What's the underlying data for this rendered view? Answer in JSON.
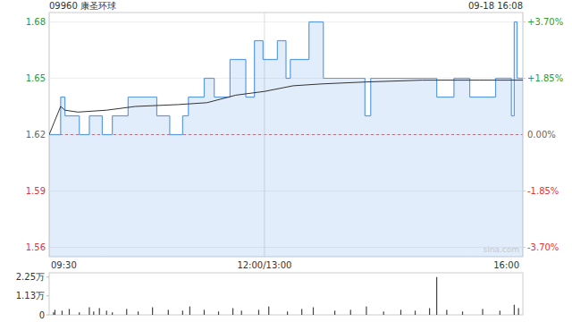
{
  "chart_data": [
    {
      "type": "line",
      "title": "09960 康圣环球",
      "subtitle": "09-18 16:08",
      "annotations": [
        "sina.com"
      ],
      "series": [
        {
          "type": "area",
          "line_style": "step",
          "color": "#5b9be6",
          "x": [
            0,
            8,
            11,
            21,
            28,
            37,
            44,
            55,
            75,
            84,
            93,
            97,
            108,
            115,
            126,
            137,
            143,
            149,
            159,
            165,
            168,
            181,
            191,
            220,
            224,
            270,
            282,
            293,
            311,
            322,
            324,
            326,
            330
          ],
          "values": [
            1.62,
            1.64,
            1.63,
            1.62,
            1.63,
            1.62,
            1.63,
            1.64,
            1.63,
            1.62,
            1.63,
            1.64,
            1.65,
            1.64,
            1.66,
            1.64,
            1.67,
            1.66,
            1.67,
            1.65,
            1.66,
            1.68,
            1.65,
            1.63,
            1.65,
            1.64,
            1.65,
            1.64,
            1.65,
            1.63,
            1.68,
            1.65,
            1.65
          ]
        },
        {
          "type": "line",
          "color": "#333333",
          "x": [
            0,
            8,
            11,
            20,
            40,
            60,
            90,
            110,
            130,
            150,
            170,
            190,
            220,
            260,
            300,
            330
          ],
          "values": [
            1.62,
            1.635,
            1.633,
            1.632,
            1.633,
            1.635,
            1.636,
            1.637,
            1.641,
            1.643,
            1.646,
            1.647,
            1.648,
            1.649,
            1.649,
            1.649
          ]
        }
      ],
      "xlim": [
        0,
        330
      ],
      "xticks": [
        {
          "value": 0,
          "label": "09:30"
        },
        {
          "value": 150,
          "label": "12:00/13:00"
        },
        {
          "value": 330,
          "label": "16:00"
        }
      ],
      "ylim": [
        1.555,
        1.685
      ],
      "yticks": [
        1.56,
        1.59,
        1.62,
        1.65,
        1.68
      ],
      "y2lim": [
        -4.01,
        4.01
      ],
      "y2ticks": [
        {
          "value": -3.7,
          "label": "-3.70%"
        },
        {
          "value": -1.85,
          "label": "-1.85%"
        },
        {
          "value": 0,
          "label": "0.00%"
        },
        {
          "value": 1.85,
          "label": "+1.85%"
        },
        {
          "value": 3.7,
          "label": "+3.70%"
        }
      ],
      "grid": true
    },
    {
      "type": "bar",
      "color": "#444444",
      "tick_labels": "y",
      "x": [
        3,
        4,
        9,
        14,
        21,
        28,
        31,
        35,
        40,
        44,
        54,
        62,
        72,
        83,
        93,
        98,
        108,
        118,
        128,
        134,
        146,
        153,
        166,
        176,
        184,
        199,
        210,
        221,
        233,
        245,
        255,
        265,
        270,
        277,
        288,
        302,
        314,
        324,
        327
      ],
      "values": [
        1500,
        3000,
        2500,
        3500,
        1500,
        4500,
        2000,
        4000,
        2500,
        1500,
        3500,
        2000,
        4500,
        3000,
        2500,
        5000,
        3000,
        2000,
        4000,
        2500,
        3000,
        5000,
        2000,
        3500,
        4500,
        2500,
        3000,
        5000,
        2000,
        3000,
        2500,
        4000,
        22500,
        3000,
        2000,
        3500,
        2500,
        6000,
        4000
      ],
      "xlim": [
        0,
        330
      ],
      "ylim": [
        0,
        25000
      ],
      "yticks": [
        0,
        {
          "value": 11300,
          "label": "1.13万"
        },
        {
          "value": 22500,
          "label": "2.25万"
        }
      ]
    }
  ]
}
